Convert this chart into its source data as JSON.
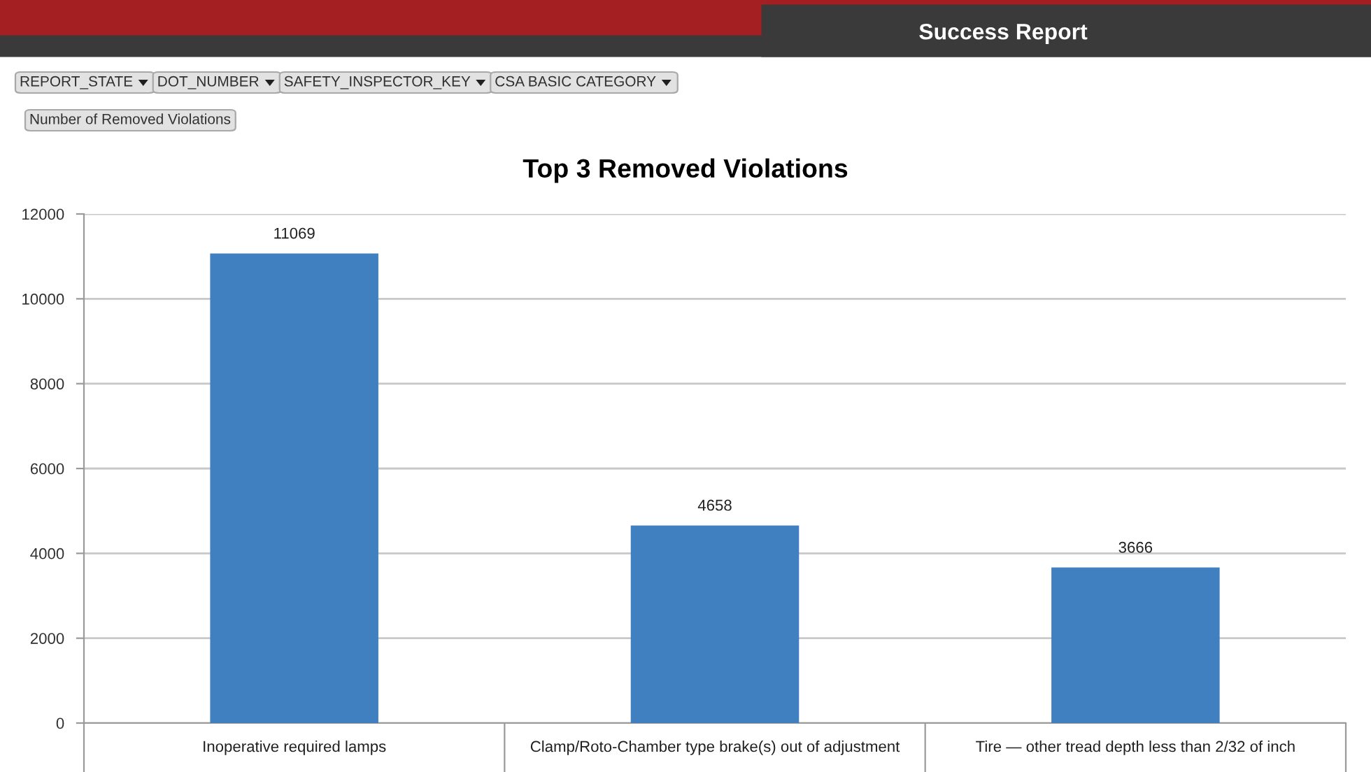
{
  "chart_data": {
    "type": "bar",
    "title": "Top 3 Removed Violations",
    "subtitle": "Success Report",
    "annotations": [
      "REPORT_STATE",
      "DOT_NUMBER",
      "SAFETY_INSPECTOR_KEY",
      "CSA BASIC CATEGORY",
      "Number of Removed Violations"
    ],
    "categories": [
      "Inoperative required lamps",
      "Clamp/Roto-Chamber type brake(s) out of adjustment",
      "Tire — other tread depth less than 2/32 of inch"
    ],
    "values": [
      11069,
      4658,
      3666
    ],
    "color": "#4080c0",
    "data_labels": true,
    "ylim": [
      0,
      12000
    ],
    "yticks": [
      0,
      2000,
      4000,
      6000,
      8000,
      10000,
      12000
    ],
    "grid": "y"
  }
}
